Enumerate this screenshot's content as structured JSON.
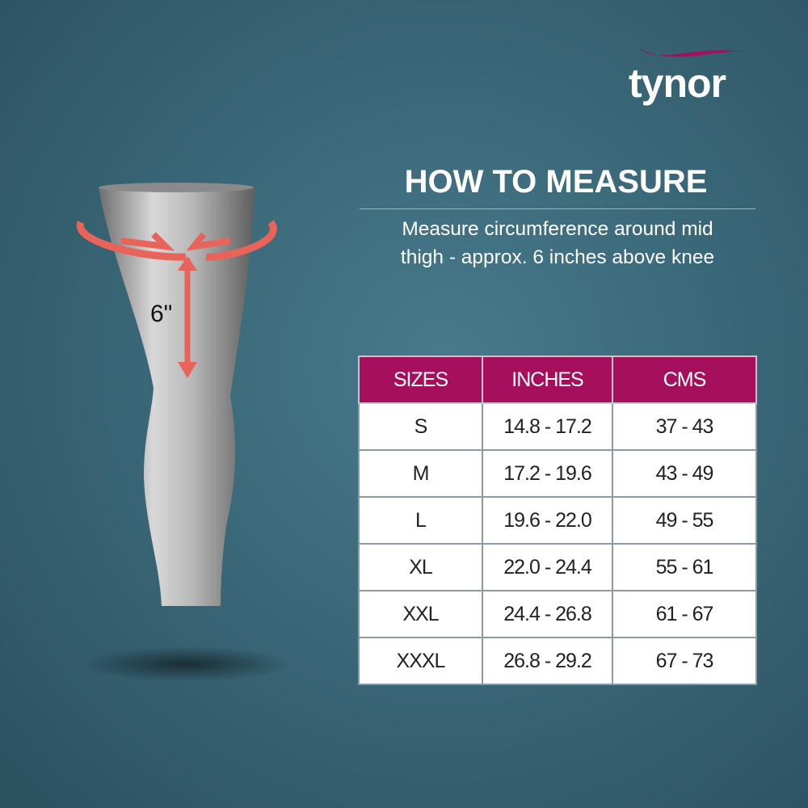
{
  "brand": {
    "logo": "tynor",
    "accent": "#a50f5c"
  },
  "heading": "HOW TO MEASURE",
  "instructions": [
    "Measure circumference around mid",
    "thigh - approx. 6 inches above knee"
  ],
  "measure_label": "6\"",
  "table": {
    "headers": [
      "SIZES",
      "INCHES",
      "CMS"
    ],
    "rows": [
      [
        "S",
        "14.8 - 17.2",
        "37 - 43"
      ],
      [
        "M",
        "17.2 - 19.6",
        "43 - 49"
      ],
      [
        "L",
        "19.6 - 22.0",
        "49 - 55"
      ],
      [
        "XL",
        "22.0 - 24.4",
        "55 - 61"
      ],
      [
        "XXL",
        "24.4 - 26.8",
        "61 - 67"
      ],
      [
        "XXXL",
        "26.8 - 29.2",
        "67 - 73"
      ]
    ]
  }
}
